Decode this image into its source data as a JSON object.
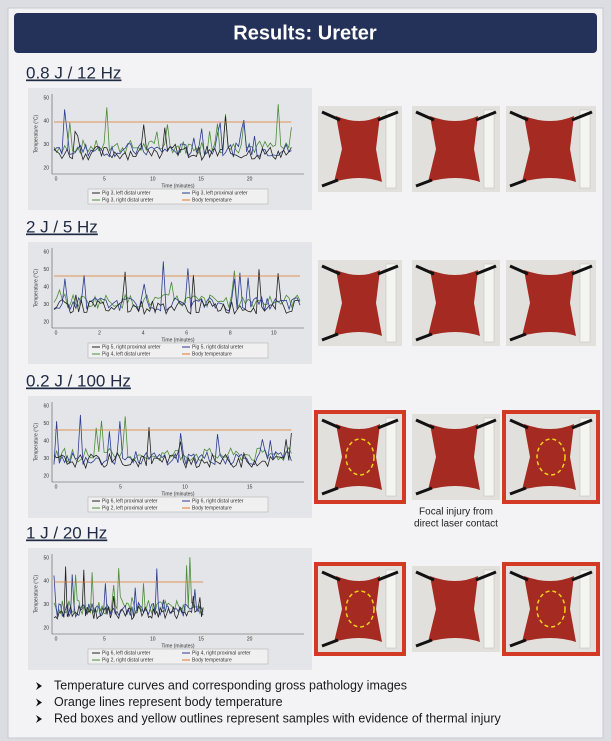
{
  "header": {
    "title": "Results: Ureter"
  },
  "sections": [
    {
      "heading": "0.8 J / 12 Hz",
      "chart": {
        "y_label": "Temperature (°C)",
        "x_label": "Time (minutes)",
        "yticks": [
          "20",
          "30",
          "40",
          "50"
        ],
        "xticks": [
          "0",
          "5",
          "10",
          "15",
          "20"
        ],
        "legend": [
          "Pig 3, left distal ureter",
          "Pig 3, left proximal ureter",
          "Pig 3, right distal ureter",
          "Body temperature"
        ]
      }
    },
    {
      "heading": "2 J / 5 Hz",
      "chart": {
        "y_label": "Temperature (°C)",
        "x_label": "Time (minutes)",
        "yticks": [
          "20",
          "30",
          "40",
          "50",
          "60"
        ],
        "xticks": [
          "0",
          "2",
          "4",
          "6",
          "8",
          "10"
        ],
        "legend": [
          "Pig 5, right proximal ureter",
          "Pig 5, right distal ureter",
          "Pig 4, left distal ureter",
          "Body temperature"
        ]
      }
    },
    {
      "heading": "0.2 J / 100 Hz",
      "chart": {
        "y_label": "Temperature (°C)",
        "x_label": "Time (minutes)",
        "yticks": [
          "20",
          "30",
          "40",
          "50",
          "60"
        ],
        "xticks": [
          "0",
          "5",
          "10",
          "15"
        ],
        "legend": [
          "Pig 6, left proximal ureter",
          "Pig 6, right distal ureter",
          "Pig 2, left proximal ureter",
          "Body temperature"
        ]
      },
      "caption": [
        "Focal injury from",
        "direct laser contact"
      ]
    },
    {
      "heading": "1 J / 20 Hz",
      "chart": {
        "y_label": "Temperature (°C)",
        "x_label": "Time (minutes)",
        "yticks": [
          "20",
          "30",
          "40",
          "50"
        ],
        "xticks": [
          "0",
          "5",
          "10",
          "15",
          "20"
        ],
        "legend": [
          "Pig 6, left distal ureter",
          "Pig 4, right proximal ureter",
          "Pig 2, right distal ureter",
          "Body temperature"
        ]
      }
    }
  ],
  "bullets": [
    "Temperature curves and corresponding gross pathology images",
    "Orange lines represent body temperature",
    "Red boxes and yellow outlines represent samples with evidence of thermal injury"
  ]
}
